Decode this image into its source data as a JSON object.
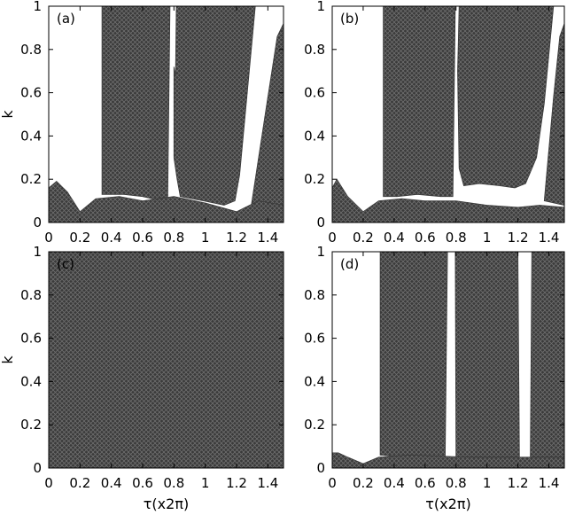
{
  "chart_data": [
    {
      "type": "heatmap",
      "panel_label": "(a)",
      "xlabel": "",
      "ylabel": "k",
      "xlim": [
        0,
        1.5
      ],
      "ylim": [
        0,
        1
      ],
      "x_ticks": [
        "0",
        "0.2",
        "0.4",
        "0.6",
        "0.8",
        "1",
        "1.2",
        "1.4"
      ],
      "y_ticks": [
        "0",
        "0.2",
        "0.4",
        "0.6",
        "0.8",
        "1"
      ],
      "fill_color": "#3a3a3a",
      "regions": [
        {
          "polygon": [
            [
              0.34,
              0.13
            ],
            [
              0.34,
              1.0
            ],
            [
              0.775,
              1.0
            ],
            [
              0.76,
              0.1
            ],
            [
              0.72,
              0.1
            ],
            [
              0.6,
              0.12
            ],
            [
              0.48,
              0.13
            ]
          ]
        },
        {
          "polygon": [
            [
              0.81,
              0.68
            ],
            [
              0.815,
              1.0
            ],
            [
              1.32,
              1.0
            ],
            [
              1.22,
              0.22
            ],
            [
              1.19,
              0.1
            ],
            [
              1.12,
              0.08
            ],
            [
              0.99,
              0.1
            ],
            [
              0.84,
              0.12
            ],
            [
              0.82,
              0.2
            ],
            [
              0.8,
              0.3
            ],
            [
              0.8,
              0.72
            ]
          ]
        },
        {
          "polygon": [
            [
              1.29,
              0.06
            ],
            [
              1.4,
              0.58
            ],
            [
              1.46,
              0.86
            ],
            [
              1.5,
              0.92
            ],
            [
              1.5,
              0.06
            ]
          ]
        },
        {
          "polygon": [
            [
              0,
              0
            ],
            [
              1.5,
              0
            ],
            [
              1.5,
              0.08
            ],
            [
              1.34,
              0.1
            ],
            [
              1.2,
              0.05
            ],
            [
              1.0,
              0.09
            ],
            [
              0.8,
              0.12
            ],
            [
              0.6,
              0.1
            ],
            [
              0.45,
              0.12
            ],
            [
              0.3,
              0.11
            ],
            [
              0.2,
              0.05
            ],
            [
              0.12,
              0.14
            ],
            [
              0.05,
              0.19
            ],
            [
              0,
              0.16
            ]
          ]
        }
      ]
    },
    {
      "type": "heatmap",
      "panel_label": "(b)",
      "xlabel": "",
      "ylabel": "",
      "xlim": [
        0,
        1.5
      ],
      "ylim": [
        0,
        1
      ],
      "x_ticks": [
        "0",
        "0.2",
        "0.4",
        "0.6",
        "0.8",
        "1",
        "1.2",
        "1.4"
      ],
      "y_ticks": [
        "0",
        "0.2",
        "0.4",
        "0.6",
        "0.8",
        "1"
      ],
      "fill_color": "#3a3a3a",
      "regions": [
        {
          "polygon": [
            [
              0.33,
              0.12
            ],
            [
              0.33,
              1.0
            ],
            [
              0.795,
              1.0
            ],
            [
              0.78,
              0.12
            ],
            [
              0.7,
              0.12
            ],
            [
              0.55,
              0.13
            ],
            [
              0.42,
              0.12
            ]
          ]
        },
        {
          "polygon": [
            [
              0.815,
              0.85
            ],
            [
              0.82,
              1.0
            ],
            [
              1.43,
              1.0
            ],
            [
              1.37,
              0.55
            ],
            [
              1.32,
              0.3
            ],
            [
              1.25,
              0.18
            ],
            [
              1.18,
              0.16
            ],
            [
              1.08,
              0.17
            ],
            [
              0.95,
              0.18
            ],
            [
              0.85,
              0.17
            ],
            [
              0.82,
              0.25
            ],
            [
              0.81,
              0.7
            ]
          ]
        },
        {
          "polygon": [
            [
              1.37,
              0.1
            ],
            [
              1.43,
              0.58
            ],
            [
              1.47,
              0.86
            ],
            [
              1.5,
              0.92
            ],
            [
              1.5,
              0.08
            ]
          ]
        },
        {
          "polygon": [
            [
              0,
              0
            ],
            [
              1.5,
              0
            ],
            [
              1.5,
              0.07
            ],
            [
              1.34,
              0.08
            ],
            [
              1.2,
              0.07
            ],
            [
              1.0,
              0.08
            ],
            [
              0.8,
              0.1
            ],
            [
              0.6,
              0.1
            ],
            [
              0.45,
              0.11
            ],
            [
              0.3,
              0.1
            ],
            [
              0.2,
              0.05
            ],
            [
              0.1,
              0.12
            ],
            [
              0.03,
              0.2
            ],
            [
              0,
              0.16
            ]
          ]
        }
      ]
    },
    {
      "type": "heatmap",
      "panel_label": "(c)",
      "xlabel": "τ(x2π)",
      "ylabel": "k",
      "xlim": [
        0,
        1.5
      ],
      "ylim": [
        0,
        1
      ],
      "x_ticks": [
        "0",
        "0.2",
        "0.4",
        "0.6",
        "0.8",
        "1",
        "1.2",
        "1.4"
      ],
      "y_ticks": [
        "0",
        "0.2",
        "0.4",
        "0.6",
        "0.8",
        "1"
      ],
      "fill_color": "#3a3a3a",
      "regions": [
        {
          "polygon": [
            [
              0,
              0
            ],
            [
              1.5,
              0
            ],
            [
              1.5,
              1.0
            ],
            [
              0,
              1.0
            ]
          ]
        }
      ]
    },
    {
      "type": "heatmap",
      "panel_label": "(d)",
      "xlabel": "τ(x2π)",
      "ylabel": "",
      "xlim": [
        0,
        1.5
      ],
      "ylim": [
        0,
        1
      ],
      "x_ticks": [
        "0",
        "0.2",
        "0.4",
        "0.6",
        "0.8",
        "1",
        "1.2",
        "1.4"
      ],
      "y_ticks": [
        "0",
        "0.2",
        "0.4",
        "0.6",
        "0.8",
        "1"
      ],
      "fill_color": "#3a3a3a",
      "regions": [
        {
          "polygon": [
            [
              0.31,
              0.06
            ],
            [
              0.31,
              1.0
            ],
            [
              0.745,
              1.0
            ],
            [
              0.73,
              0.05
            ],
            [
              0.5,
              0.05
            ]
          ]
        },
        {
          "polygon": [
            [
              0.8,
              0.05
            ],
            [
              0.795,
              1.0
            ],
            [
              1.2,
              1.0
            ],
            [
              1.21,
              0.05
            ]
          ]
        },
        {
          "polygon": [
            [
              1.28,
              0.05
            ],
            [
              1.29,
              1.0
            ],
            [
              1.5,
              1.0
            ],
            [
              1.5,
              0.05
            ]
          ]
        },
        {
          "polygon": [
            [
              0,
              0
            ],
            [
              1.5,
              0
            ],
            [
              1.5,
              0.05
            ],
            [
              0.9,
              0.05
            ],
            [
              0.5,
              0.06
            ],
            [
              0.3,
              0.05
            ],
            [
              0.2,
              0.02
            ],
            [
              0.1,
              0.05
            ],
            [
              0.04,
              0.07
            ],
            [
              0,
              0.07
            ]
          ]
        }
      ]
    }
  ]
}
